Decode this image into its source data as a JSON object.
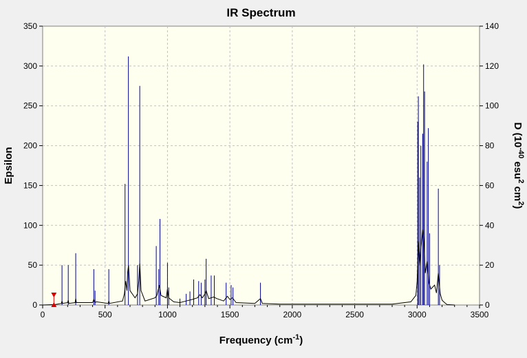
{
  "chart_data": {
    "type": "line",
    "title": "IR Spectrum",
    "xlabel_main": "Frequency (cm",
    "xlabel_sup": "-1",
    "xlabel_end": ")",
    "ylabel": "Epsilon",
    "y2label_parts": [
      "D (10",
      "-40",
      " esu",
      "2",
      " cm",
      "2",
      ")"
    ],
    "xlim": [
      0,
      3500
    ],
    "ylim": [
      0,
      350
    ],
    "y2lim": [
      0,
      140
    ],
    "x_ticks": [
      0,
      500,
      1000,
      1500,
      2000,
      2500,
      3000,
      3500
    ],
    "y_ticks": [
      0,
      50,
      100,
      150,
      200,
      250,
      300,
      350
    ],
    "y2_ticks": [
      0,
      20,
      40,
      60,
      80,
      100,
      120,
      140
    ],
    "grid": true,
    "colors": {
      "background": "#fffff0",
      "spectrum": "#000000",
      "sticks": "#00008b",
      "marker": "#dd0000",
      "grid": "#c0c0c0"
    },
    "marker_x": 90,
    "series": [
      {
        "kind": "curve",
        "values": [
          [
            0,
            0
          ],
          [
            100,
            0.5
          ],
          [
            150,
            2
          ],
          [
            155,
            5
          ],
          [
            160,
            2
          ],
          [
            200,
            3
          ],
          [
            205,
            6
          ],
          [
            210,
            2
          ],
          [
            260,
            3
          ],
          [
            265,
            8
          ],
          [
            270,
            3
          ],
          [
            400,
            3
          ],
          [
            410,
            7
          ],
          [
            420,
            3
          ],
          [
            430,
            4
          ],
          [
            525,
            2
          ],
          [
            530,
            5
          ],
          [
            535,
            2
          ],
          [
            640,
            5
          ],
          [
            655,
            14
          ],
          [
            665,
            30
          ],
          [
            675,
            18
          ],
          [
            680,
            40
          ],
          [
            688,
            50
          ],
          [
            700,
            18
          ],
          [
            740,
            9
          ],
          [
            760,
            14
          ],
          [
            770,
            30
          ],
          [
            778,
            52
          ],
          [
            788,
            18
          ],
          [
            820,
            5
          ],
          [
            900,
            9
          ],
          [
            915,
            12
          ],
          [
            935,
            25
          ],
          [
            948,
            12
          ],
          [
            990,
            9
          ],
          [
            1000,
            20
          ],
          [
            1010,
            9
          ],
          [
            1050,
            4
          ],
          [
            1100,
            3
          ],
          [
            1150,
            5
          ],
          [
            1200,
            7
          ],
          [
            1240,
            9
          ],
          [
            1260,
            13
          ],
          [
            1280,
            9
          ],
          [
            1300,
            14
          ],
          [
            1310,
            18
          ],
          [
            1330,
            8
          ],
          [
            1370,
            10
          ],
          [
            1395,
            8
          ],
          [
            1450,
            5
          ],
          [
            1480,
            11
          ],
          [
            1500,
            7
          ],
          [
            1520,
            9
          ],
          [
            1550,
            3
          ],
          [
            1700,
            2
          ],
          [
            1745,
            8
          ],
          [
            1760,
            2
          ],
          [
            1900,
            1
          ],
          [
            2500,
            1
          ],
          [
            2800,
            1
          ],
          [
            2950,
            4
          ],
          [
            2990,
            12
          ],
          [
            3000,
            30
          ],
          [
            3010,
            80
          ],
          [
            3020,
            50
          ],
          [
            3030,
            70
          ],
          [
            3045,
            95
          ],
          [
            3055,
            80
          ],
          [
            3065,
            40
          ],
          [
            3080,
            55
          ],
          [
            3095,
            28
          ],
          [
            3110,
            20
          ],
          [
            3140,
            25
          ],
          [
            3155,
            15
          ],
          [
            3170,
            40
          ],
          [
            3185,
            14
          ],
          [
            3200,
            6
          ],
          [
            3220,
            3
          ],
          [
            3240,
            0.5
          ],
          [
            3300,
            0
          ]
        ]
      },
      {
        "kind": "sticks",
        "values": [
          [
            155,
            50
          ],
          [
            205,
            50
          ],
          [
            265,
            65
          ],
          [
            410,
            45
          ],
          [
            420,
            18
          ],
          [
            530,
            45
          ],
          [
            660,
            152
          ],
          [
            687,
            312
          ],
          [
            760,
            50
          ],
          [
            778,
            275
          ],
          [
            910,
            74
          ],
          [
            930,
            45
          ],
          [
            940,
            108
          ],
          [
            1000,
            53
          ],
          [
            1010,
            22
          ],
          [
            1100,
            8
          ],
          [
            1150,
            14
          ],
          [
            1180,
            17
          ],
          [
            1210,
            32
          ],
          [
            1250,
            30
          ],
          [
            1270,
            28
          ],
          [
            1300,
            32
          ],
          [
            1310,
            58
          ],
          [
            1350,
            37
          ],
          [
            1375,
            37
          ],
          [
            1470,
            28
          ],
          [
            1510,
            25
          ],
          [
            1525,
            22
          ],
          [
            1745,
            28
          ],
          [
            3005,
            230
          ],
          [
            3010,
            262
          ],
          [
            3020,
            160
          ],
          [
            3030,
            200
          ],
          [
            3045,
            215
          ],
          [
            3052,
            302
          ],
          [
            3060,
            268
          ],
          [
            3080,
            180
          ],
          [
            3090,
            222
          ],
          [
            3100,
            90
          ],
          [
            3170,
            146
          ],
          [
            3180,
            50
          ]
        ]
      }
    ]
  }
}
